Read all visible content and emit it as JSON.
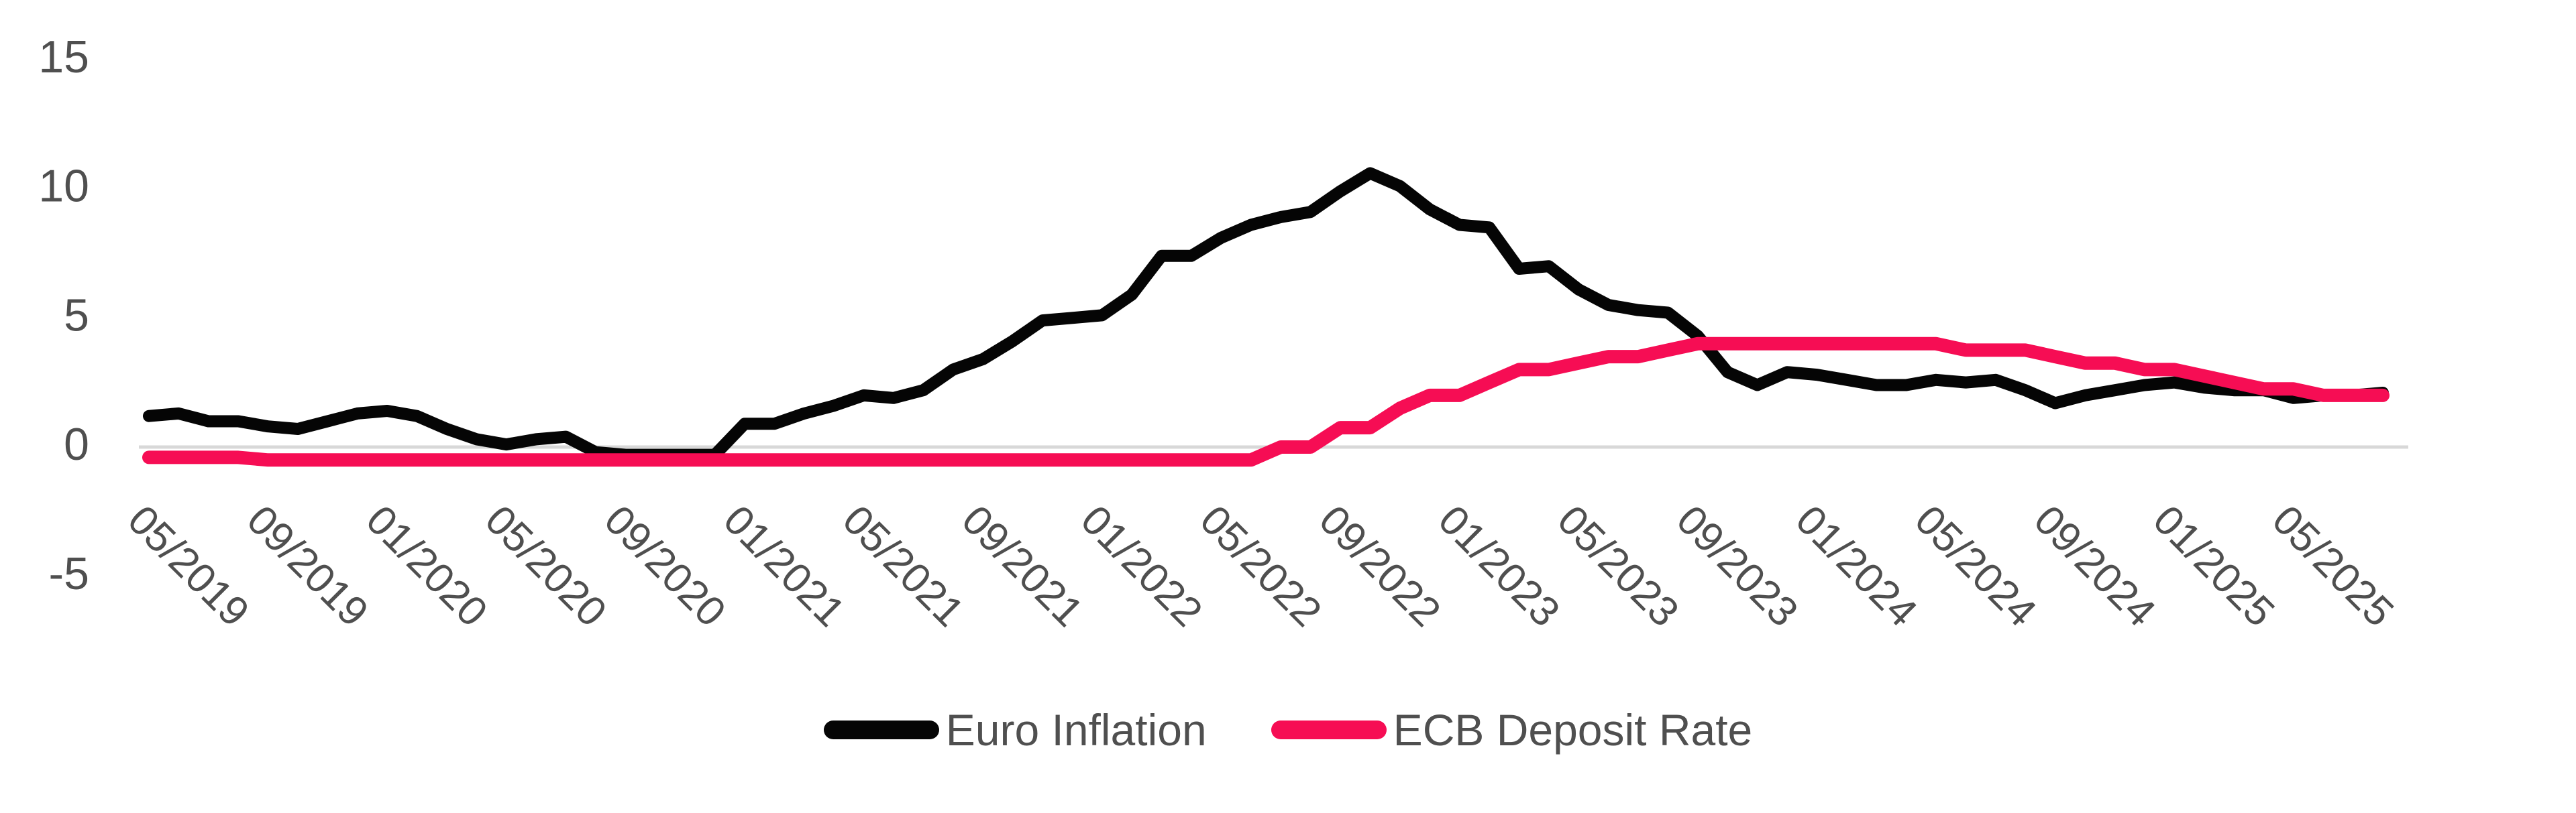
{
  "chart_data": {
    "type": "line",
    "title": "",
    "xlabel": "",
    "ylabel": "",
    "ylim": [
      -5,
      15
    ],
    "y_ticks": [
      15,
      10,
      5,
      0,
      -5
    ],
    "grid": "zero-line-only",
    "legend_position": "bottom-center",
    "x_months": [
      "05/2019",
      "06/2019",
      "07/2019",
      "08/2019",
      "09/2019",
      "10/2019",
      "11/2019",
      "12/2019",
      "01/2020",
      "02/2020",
      "03/2020",
      "04/2020",
      "05/2020",
      "06/2020",
      "07/2020",
      "08/2020",
      "09/2020",
      "10/2020",
      "11/2020",
      "12/2020",
      "01/2021",
      "02/2021",
      "03/2021",
      "04/2021",
      "05/2021",
      "06/2021",
      "07/2021",
      "08/2021",
      "09/2021",
      "10/2021",
      "11/2021",
      "12/2021",
      "01/2022",
      "02/2022",
      "03/2022",
      "04/2022",
      "05/2022",
      "06/2022",
      "07/2022",
      "08/2022",
      "09/2022",
      "10/2022",
      "11/2022",
      "12/2022",
      "01/2023",
      "02/2023",
      "03/2023",
      "04/2023",
      "05/2023",
      "06/2023",
      "07/2023",
      "08/2023",
      "09/2023",
      "10/2023",
      "11/2023",
      "12/2023",
      "01/2024",
      "02/2024",
      "03/2024",
      "04/2024",
      "05/2024",
      "06/2024",
      "07/2024",
      "08/2024",
      "09/2024",
      "10/2024",
      "11/2024",
      "12/2024",
      "01/2025",
      "02/2025",
      "03/2025",
      "04/2025",
      "05/2025",
      "06/2025",
      "07/2025",
      "08/2025"
    ],
    "x_tick_labels": [
      "05/2019",
      "09/2019",
      "01/2020",
      "05/2020",
      "09/2020",
      "01/2021",
      "05/2021",
      "09/2021",
      "01/2022",
      "05/2022",
      "09/2022",
      "01/2023",
      "05/2023",
      "09/2023",
      "01/2024",
      "05/2024",
      "09/2024",
      "01/2025",
      "05/2025"
    ],
    "x_tick_month_step": 4,
    "series": [
      {
        "name": "Euro Inflation",
        "color": "#050505",
        "values": [
          1.2,
          1.3,
          1.0,
          1.0,
          0.8,
          0.7,
          1.0,
          1.3,
          1.4,
          1.2,
          0.7,
          0.3,
          0.1,
          0.3,
          0.4,
          -0.2,
          -0.3,
          -0.3,
          -0.3,
          -0.3,
          0.9,
          0.9,
          1.3,
          1.6,
          2.0,
          1.9,
          2.2,
          3.0,
          3.4,
          4.1,
          4.9,
          5.0,
          5.1,
          5.9,
          7.4,
          7.4,
          8.1,
          8.6,
          8.9,
          9.1,
          9.9,
          10.6,
          10.1,
          9.2,
          8.6,
          8.5,
          6.9,
          7.0,
          6.1,
          5.5,
          5.3,
          5.2,
          4.3,
          2.9,
          2.4,
          2.9,
          2.8,
          2.6,
          2.4,
          2.4,
          2.6,
          2.5,
          2.6,
          2.2,
          1.7,
          2.0,
          2.2,
          2.4,
          2.5,
          2.3,
          2.2,
          2.2,
          1.9,
          2.0,
          2.0,
          2.1
        ]
      },
      {
        "name": "ECB Deposit Rate",
        "color": "#f60d54",
        "values": [
          -0.4,
          -0.4,
          -0.4,
          -0.4,
          -0.5,
          -0.5,
          -0.5,
          -0.5,
          -0.5,
          -0.5,
          -0.5,
          -0.5,
          -0.5,
          -0.5,
          -0.5,
          -0.5,
          -0.5,
          -0.5,
          -0.5,
          -0.5,
          -0.5,
          -0.5,
          -0.5,
          -0.5,
          -0.5,
          -0.5,
          -0.5,
          -0.5,
          -0.5,
          -0.5,
          -0.5,
          -0.5,
          -0.5,
          -0.5,
          -0.5,
          -0.5,
          -0.5,
          -0.5,
          0.0,
          0.0,
          0.75,
          0.75,
          1.5,
          2.0,
          2.0,
          2.5,
          3.0,
          3.0,
          3.25,
          3.5,
          3.5,
          3.75,
          4.0,
          4.0,
          4.0,
          4.0,
          4.0,
          4.0,
          4.0,
          4.0,
          4.0,
          3.75,
          3.75,
          3.75,
          3.5,
          3.25,
          3.25,
          3.0,
          3.0,
          2.75,
          2.5,
          2.25,
          2.25,
          2.0,
          2.0,
          2.0
        ]
      }
    ],
    "colors": {
      "zero_gridline": "#d8d8d8",
      "axis_text": "#4f4f4f",
      "background": "#ffffff"
    }
  },
  "legend": {
    "items": [
      {
        "label": "Euro Inflation"
      },
      {
        "label": "ECB Deposit Rate"
      }
    ]
  }
}
